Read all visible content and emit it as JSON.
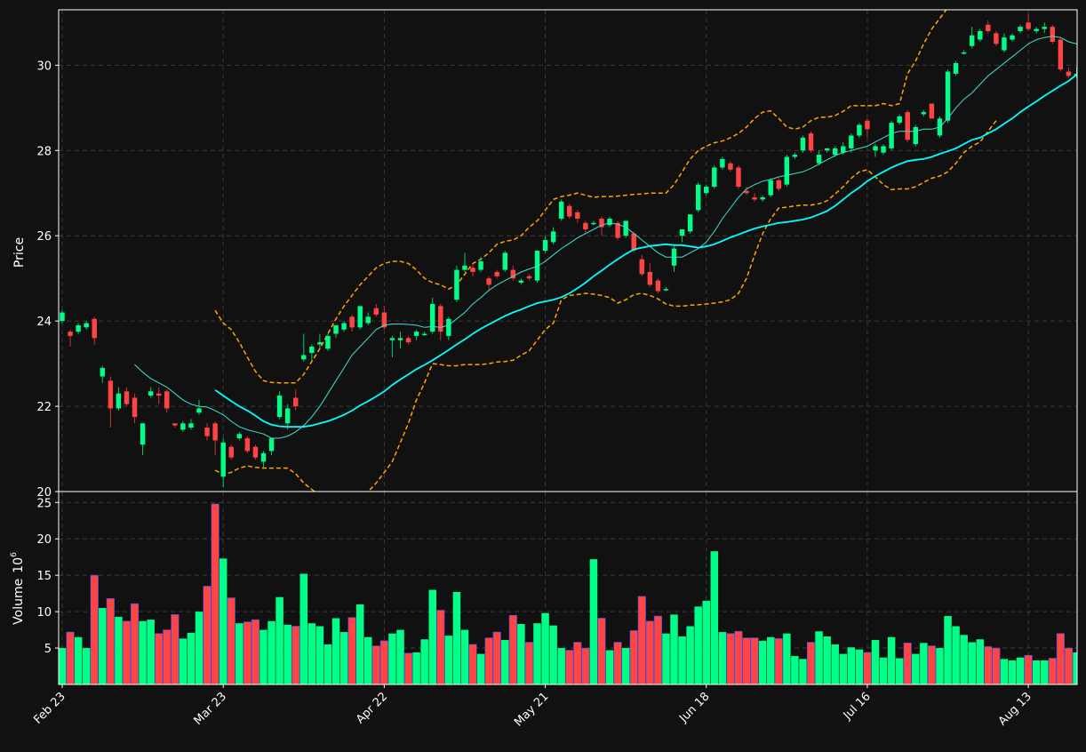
{
  "chart_data": {
    "type": "candlestick",
    "colors": {
      "background": "#111111",
      "up": "#00ff88",
      "down": "#ff4444",
      "wick_up": "#00cc77",
      "wick_down": "#cc3333",
      "vol_down_edge": "#3355ff",
      "ma_fast": "#40e0d0",
      "ma_slow": "#00ffff",
      "bands": "#ffa500",
      "grid": "#3a3a3a"
    },
    "price_panel": {
      "ylabel": "Price",
      "ylim": [
        20,
        31.3
      ],
      "yticks": [
        20,
        22,
        24,
        26,
        28,
        30
      ]
    },
    "volume_panel": {
      "ylabel": "Volume",
      "scale_label": "10",
      "scale_exponent": "6",
      "ylim": [
        0,
        26.5
      ],
      "yticks": [
        5,
        10,
        15,
        20,
        25
      ]
    },
    "x_tick_labels": [
      {
        "index": 0,
        "label": "Feb 23"
      },
      {
        "index": 20,
        "label": "Mar 23"
      },
      {
        "index": 40,
        "label": "Apr 22"
      },
      {
        "index": 60,
        "label": "May 21"
      },
      {
        "index": 80,
        "label": "Jun 18"
      },
      {
        "index": 100,
        "label": "Jul 16"
      },
      {
        "index": 120,
        "label": "Aug 13"
      }
    ],
    "ohlc": [
      [
        24.0,
        24.25,
        23.95,
        24.2
      ],
      [
        23.75,
        23.8,
        23.4,
        23.65
      ],
      [
        23.75,
        23.95,
        23.7,
        23.9
      ],
      [
        23.85,
        24.0,
        23.8,
        23.95
      ],
      [
        24.05,
        24.1,
        23.45,
        23.6
      ],
      [
        22.7,
        22.95,
        22.55,
        22.9
      ],
      [
        22.6,
        22.7,
        21.5,
        21.95
      ],
      [
        21.95,
        22.45,
        21.9,
        22.3
      ],
      [
        22.35,
        22.45,
        22.0,
        22.05
      ],
      [
        22.2,
        22.3,
        21.6,
        21.75
      ],
      [
        21.1,
        21.6,
        20.85,
        21.6
      ],
      [
        22.25,
        22.45,
        22.2,
        22.35
      ],
      [
        22.3,
        22.45,
        22.05,
        22.25
      ],
      [
        22.35,
        22.4,
        21.85,
        21.95
      ],
      [
        21.6,
        21.6,
        21.5,
        21.55
      ],
      [
        21.45,
        21.65,
        21.4,
        21.6
      ],
      [
        21.5,
        21.7,
        21.45,
        21.6
      ],
      [
        21.85,
        22.15,
        21.8,
        21.95
      ],
      [
        21.5,
        21.6,
        21.2,
        21.3
      ],
      [
        21.6,
        21.65,
        20.85,
        21.2
      ],
      [
        20.35,
        21.25,
        20.1,
        21.15
      ],
      [
        21.05,
        21.1,
        20.75,
        20.8
      ],
      [
        21.25,
        21.4,
        21.2,
        21.35
      ],
      [
        21.25,
        21.3,
        20.9,
        20.95
      ],
      [
        21.05,
        21.1,
        20.75,
        20.8
      ],
      [
        20.7,
        20.95,
        20.55,
        20.9
      ],
      [
        20.95,
        21.25,
        20.85,
        21.25
      ],
      [
        21.75,
        22.35,
        21.7,
        22.25
      ],
      [
        21.6,
        22.05,
        21.45,
        21.95
      ],
      [
        22.2,
        22.4,
        21.9,
        22.0
      ],
      [
        23.1,
        23.7,
        23.05,
        23.2
      ],
      [
        23.25,
        23.45,
        23.05,
        23.4
      ],
      [
        23.45,
        23.7,
        23.35,
        23.5
      ],
      [
        23.35,
        23.7,
        23.3,
        23.65
      ],
      [
        23.7,
        23.9,
        23.6,
        23.9
      ],
      [
        23.8,
        24.0,
        23.75,
        23.95
      ],
      [
        24.1,
        24.15,
        23.75,
        23.85
      ],
      [
        23.85,
        24.35,
        23.8,
        24.35
      ],
      [
        23.95,
        24.2,
        23.9,
        24.1
      ],
      [
        24.3,
        24.4,
        24.1,
        24.15
      ],
      [
        24.2,
        24.35,
        23.8,
        23.85
      ],
      [
        23.55,
        23.65,
        23.15,
        23.6
      ],
      [
        23.55,
        23.75,
        23.35,
        23.6
      ],
      [
        23.6,
        23.65,
        23.45,
        23.5
      ],
      [
        23.65,
        23.8,
        23.55,
        23.75
      ],
      [
        23.7,
        23.75,
        23.65,
        23.7
      ],
      [
        23.75,
        24.55,
        23.7,
        24.4
      ],
      [
        24.35,
        24.4,
        23.55,
        23.75
      ],
      [
        23.65,
        24.1,
        23.55,
        24.05
      ],
      [
        24.5,
        25.3,
        24.45,
        25.2
      ],
      [
        25.2,
        25.6,
        25.15,
        25.3
      ],
      [
        25.25,
        25.35,
        25.05,
        25.15
      ],
      [
        25.2,
        25.5,
        25.15,
        25.4
      ],
      [
        25.0,
        25.05,
        24.7,
        24.85
      ],
      [
        25.15,
        25.2,
        25.0,
        25.05
      ],
      [
        25.2,
        25.65,
        25.15,
        25.6
      ],
      [
        25.2,
        25.3,
        24.95,
        25.0
      ],
      [
        24.9,
        25.0,
        24.85,
        24.95
      ],
      [
        25.05,
        25.1,
        24.95,
        25.0
      ],
      [
        24.95,
        25.65,
        24.9,
        25.65
      ],
      [
        25.65,
        26.0,
        25.6,
        25.9
      ],
      [
        25.85,
        26.2,
        25.8,
        26.1
      ],
      [
        26.4,
        26.85,
        26.35,
        26.8
      ],
      [
        26.7,
        26.75,
        26.4,
        26.45
      ],
      [
        26.55,
        26.6,
        26.3,
        26.4
      ],
      [
        26.3,
        26.35,
        26.05,
        26.15
      ],
      [
        26.3,
        26.35,
        26.25,
        26.3
      ],
      [
        26.4,
        26.45,
        26.0,
        26.2
      ],
      [
        26.25,
        26.45,
        26.2,
        26.4
      ],
      [
        26.3,
        26.35,
        25.9,
        25.95
      ],
      [
        26.0,
        26.35,
        25.95,
        26.35
      ],
      [
        26.05,
        26.1,
        25.6,
        25.65
      ],
      [
        25.45,
        25.55,
        25.05,
        25.1
      ],
      [
        25.15,
        25.35,
        24.8,
        24.85
      ],
      [
        24.95,
        25.0,
        24.65,
        24.7
      ],
      [
        24.75,
        24.8,
        24.7,
        24.75
      ],
      [
        25.3,
        25.75,
        25.15,
        25.7
      ],
      [
        26.0,
        26.05,
        25.85,
        26.15
      ],
      [
        26.1,
        26.5,
        26.05,
        26.5
      ],
      [
        26.6,
        27.25,
        26.55,
        27.2
      ],
      [
        27.0,
        27.2,
        26.95,
        27.15
      ],
      [
        27.15,
        27.65,
        27.1,
        27.6
      ],
      [
        27.6,
        27.85,
        27.55,
        27.8
      ],
      [
        27.7,
        27.75,
        27.5,
        27.55
      ],
      [
        27.6,
        27.65,
        27.1,
        27.15
      ],
      [
        27.05,
        27.15,
        26.95,
        27.0
      ],
      [
        26.9,
        27.0,
        26.8,
        26.85
      ],
      [
        26.85,
        26.95,
        26.8,
        26.9
      ],
      [
        26.95,
        27.35,
        26.9,
        27.3
      ],
      [
        27.3,
        27.35,
        27.05,
        27.1
      ],
      [
        27.2,
        27.9,
        27.15,
        27.85
      ],
      [
        27.85,
        27.95,
        27.8,
        27.9
      ],
      [
        28.0,
        28.35,
        27.95,
        28.3
      ],
      [
        28.4,
        28.45,
        27.95,
        28.0
      ],
      [
        27.7,
        28.0,
        27.65,
        27.9
      ],
      [
        28.0,
        28.05,
        27.95,
        28.05
      ],
      [
        27.9,
        28.1,
        27.85,
        28.05
      ],
      [
        27.95,
        28.2,
        27.9,
        28.1
      ],
      [
        28.05,
        28.4,
        27.95,
        28.35
      ],
      [
        28.35,
        28.65,
        28.3,
        28.6
      ],
      [
        28.7,
        28.75,
        28.3,
        28.5
      ],
      [
        28.0,
        28.15,
        27.85,
        28.1
      ],
      [
        27.95,
        28.15,
        27.9,
        28.1
      ],
      [
        28.05,
        28.7,
        28.0,
        28.65
      ],
      [
        28.65,
        28.85,
        28.6,
        28.8
      ],
      [
        28.9,
        28.95,
        28.2,
        28.25
      ],
      [
        28.15,
        28.6,
        28.1,
        28.55
      ],
      [
        28.85,
        28.95,
        28.8,
        28.9
      ],
      [
        29.1,
        29.1,
        28.75,
        28.75
      ],
      [
        28.35,
        28.8,
        28.3,
        28.75
      ],
      [
        28.7,
        29.9,
        28.65,
        29.85
      ],
      [
        29.8,
        30.1,
        29.75,
        30.05
      ],
      [
        30.3,
        30.35,
        30.25,
        30.3
      ],
      [
        30.45,
        30.9,
        30.4,
        30.7
      ],
      [
        30.6,
        30.85,
        30.55,
        30.8
      ],
      [
        30.95,
        31.05,
        30.75,
        30.8
      ],
      [
        30.75,
        30.8,
        30.45,
        30.5
      ],
      [
        30.35,
        30.75,
        30.3,
        30.65
      ],
      [
        30.6,
        30.75,
        30.55,
        30.7
      ],
      [
        30.8,
        30.95,
        30.75,
        30.9
      ],
      [
        31.0,
        31.2,
        30.8,
        30.85
      ],
      [
        30.8,
        30.9,
        30.75,
        30.85
      ],
      [
        30.85,
        31.0,
        30.75,
        30.9
      ],
      [
        30.9,
        30.95,
        30.5,
        30.55
      ],
      [
        30.6,
        30.65,
        29.85,
        29.9
      ],
      [
        29.85,
        29.95,
        29.7,
        29.75
      ],
      [
        29.8,
        29.95,
        29.7,
        29.8
      ]
    ],
    "volume": [
      5.0,
      7.2,
      6.5,
      5.0,
      15.0,
      10.5,
      11.8,
      9.3,
      8.7,
      11.1,
      8.7,
      8.9,
      7.0,
      7.5,
      9.6,
      6.3,
      7.1,
      10.0,
      13.5,
      24.8,
      17.3,
      11.9,
      8.4,
      8.6,
      8.9,
      7.5,
      8.7,
      12.0,
      8.2,
      8.0,
      15.2,
      8.4,
      8.0,
      5.5,
      9.1,
      7.2,
      9.2,
      11.0,
      6.5,
      5.3,
      6.0,
      7.0,
      7.5,
      4.3,
      4.4,
      6.2,
      13.0,
      10.2,
      6.7,
      12.7,
      7.5,
      5.5,
      4.2,
      6.4,
      7.2,
      6.1,
      9.5,
      8.3,
      5.8,
      8.4,
      9.8,
      8.1,
      5.0,
      4.7,
      5.8,
      5.0,
      17.2,
      9.1,
      4.7,
      5.8,
      5.0,
      7.4,
      12.1,
      8.7,
      9.4,
      7.0,
      9.6,
      6.6,
      8.0,
      10.7,
      11.5,
      18.3,
      7.2,
      7.0,
      7.3,
      6.4,
      6.4,
      6.0,
      6.5,
      6.3,
      7.0,
      3.9,
      3.5,
      5.8,
      7.3,
      6.6,
      5.5,
      4.2,
      5.1,
      4.8,
      4.4,
      6.1,
      3.7,
      6.5,
      3.6,
      5.7,
      4.2,
      5.7,
      5.3,
      5.0,
      9.4,
      8.0,
      6.8,
      5.8,
      6.2,
      5.2,
      5.0,
      3.5,
      3.3,
      3.7,
      4.0,
      3.3,
      3.3,
      3.6,
      7.0,
      5.0,
      4.4
    ],
    "ma_fast": [
      null,
      null,
      null,
      null,
      null,
      null,
      null,
      null,
      null,
      22.98,
      22.8,
      22.65,
      22.55,
      22.45,
      22.3,
      22.15,
      22.05,
      22.0,
      21.98,
      21.9,
      21.8,
      21.65,
      21.52,
      21.45,
      21.4,
      21.35,
      21.25,
      21.25,
      21.3,
      21.4,
      21.55,
      21.75,
      22.0,
      22.3,
      22.6,
      22.9,
      23.2,
      23.4,
      23.6,
      23.8,
      23.9,
      23.93,
      23.93,
      23.92,
      23.9,
      23.85,
      23.87,
      23.85,
      23.9,
      24.05,
      24.2,
      24.4,
      24.55,
      24.72,
      24.85,
      24.95,
      25.05,
      25.15,
      25.22,
      25.28,
      25.4,
      25.55,
      25.7,
      25.82,
      25.95,
      26.05,
      26.15,
      26.25,
      26.3,
      26.27,
      26.2,
      26.05,
      25.9,
      25.75,
      25.6,
      25.5,
      25.5,
      25.5,
      25.6,
      25.7,
      25.85,
      26.1,
      26.4,
      26.65,
      26.9,
      27.1,
      27.2,
      27.28,
      27.32,
      27.38,
      27.42,
      27.46,
      27.5,
      27.58,
      27.68,
      27.78,
      27.88,
      27.95,
      28.0,
      28.05,
      28.1,
      28.2,
      28.3,
      28.4,
      28.45,
      28.45,
      28.45,
      28.5,
      28.5,
      28.55,
      28.75,
      29.0,
      29.2,
      29.35,
      29.55,
      29.75,
      29.9,
      30.05,
      30.2,
      30.35,
      30.5,
      30.6,
      30.65,
      30.68,
      30.65,
      30.55,
      30.5
    ],
    "ma_slow": [
      null,
      null,
      null,
      null,
      null,
      null,
      null,
      null,
      null,
      null,
      null,
      null,
      null,
      null,
      null,
      null,
      null,
      null,
      null,
      22.38,
      22.25,
      22.12,
      22.0,
      21.9,
      21.78,
      21.65,
      21.57,
      21.53,
      21.52,
      21.52,
      21.52,
      21.55,
      21.6,
      21.65,
      21.72,
      21.8,
      21.9,
      22.02,
      22.12,
      22.23,
      22.35,
      22.5,
      22.63,
      22.75,
      22.87,
      22.97,
      23.08,
      23.2,
      23.32,
      23.45,
      23.57,
      23.7,
      23.82,
      23.92,
      24.02,
      24.12,
      24.2,
      24.27,
      24.35,
      24.42,
      24.46,
      24.5,
      24.56,
      24.65,
      24.77,
      24.9,
      25.05,
      25.18,
      25.32,
      25.45,
      25.57,
      25.68,
      25.72,
      25.76,
      25.78,
      25.8,
      25.78,
      25.78,
      25.75,
      25.72,
      25.75,
      25.8,
      25.88,
      25.96,
      26.03,
      26.1,
      26.17,
      26.22,
      26.26,
      26.3,
      26.32,
      26.35,
      26.38,
      26.43,
      26.5,
      26.58,
      26.7,
      26.85,
      27.0,
      27.13,
      27.28,
      27.4,
      27.5,
      27.6,
      27.68,
      27.75,
      27.78,
      27.8,
      27.85,
      27.92,
      27.98,
      28.05,
      28.15,
      28.25,
      28.3,
      28.4,
      28.5,
      28.63,
      28.75,
      28.9,
      29.03,
      29.15,
      29.28,
      29.4,
      29.52,
      29.63,
      29.78,
      29.92,
      30.02,
      30.08,
      30.12,
      30.18
    ],
    "band_upper": [
      null,
      null,
      null,
      null,
      null,
      null,
      null,
      null,
      null,
      null,
      null,
      null,
      null,
      null,
      null,
      null,
      null,
      null,
      null,
      24.25,
      23.95,
      23.8,
      23.5,
      23.15,
      22.82,
      22.6,
      22.56,
      22.55,
      22.55,
      22.55,
      22.75,
      23.05,
      23.35,
      23.7,
      24.05,
      24.35,
      24.6,
      24.85,
      25.05,
      25.25,
      25.35,
      25.4,
      25.4,
      25.35,
      25.2,
      25.0,
      24.9,
      24.85,
      24.75,
      24.85,
      25.1,
      25.35,
      25.45,
      25.6,
      25.8,
      25.87,
      25.9,
      26.0,
      26.2,
      26.35,
      26.6,
      26.85,
      26.92,
      26.95,
      27.0,
      26.95,
      26.9,
      26.92,
      26.92,
      26.93,
      26.95,
      26.97,
      26.98,
      27.0,
      27.0,
      27.0,
      27.2,
      27.5,
      27.8,
      28.0,
      28.1,
      28.18,
      28.22,
      28.3,
      28.4,
      28.55,
      28.75,
      28.9,
      28.93,
      28.75,
      28.55,
      28.5,
      28.55,
      28.7,
      28.78,
      28.78,
      28.82,
      28.92,
      29.05,
      29.05,
      29.05,
      29.05,
      29.1,
      29.05,
      29.1,
      29.8,
      30.1,
      30.5,
      30.85,
      31.1,
      31.35,
      31.6,
      31.85,
      32.0
    ],
    "band_lower": [
      null,
      null,
      null,
      null,
      null,
      null,
      null,
      null,
      null,
      null,
      null,
      null,
      null,
      null,
      null,
      null,
      null,
      null,
      null,
      20.5,
      20.4,
      20.45,
      20.55,
      20.6,
      20.57,
      20.55,
      20.55,
      20.55,
      20.55,
      20.42,
      20.2,
      20.05,
      19.9,
      19.75,
      19.65,
      19.6,
      19.7,
      19.85,
      20.0,
      20.2,
      20.45,
      20.7,
      21.15,
      21.6,
      22.15,
      22.55,
      23.0,
      22.98,
      22.95,
      22.95,
      22.98,
      22.98,
      22.98,
      23.0,
      23.04,
      23.05,
      23.08,
      23.2,
      23.3,
      23.55,
      23.8,
      23.95,
      24.5,
      24.6,
      24.62,
      24.65,
      24.63,
      24.6,
      24.55,
      24.42,
      24.5,
      24.62,
      24.65,
      24.6,
      24.52,
      24.4,
      24.35,
      24.35,
      24.37,
      24.38,
      24.4,
      24.42,
      24.45,
      24.5,
      24.65,
      25.0,
      25.55,
      26.05,
      26.4,
      26.65,
      26.67,
      26.7,
      26.72,
      26.72,
      26.75,
      26.82,
      26.98,
      27.15,
      27.35,
      27.5,
      27.55,
      27.38,
      27.2,
      27.08,
      27.1,
      27.1,
      27.15,
      27.25,
      27.35,
      27.4,
      27.5,
      27.7,
      27.95,
      28.1,
      28.2,
      28.45,
      28.7
    ]
  }
}
